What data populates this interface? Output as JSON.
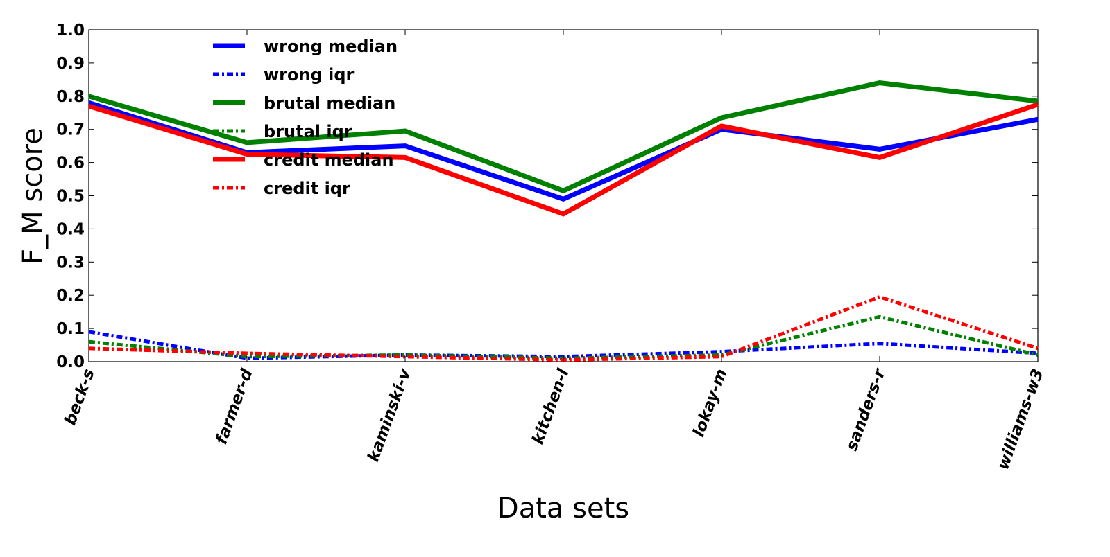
{
  "chart_data": {
    "type": "line",
    "title": "",
    "xlabel": "Data sets",
    "ylabel": "F_M score",
    "ylim": [
      0.0,
      1.0
    ],
    "yticks": [
      "0.0",
      "0.1",
      "0.2",
      "0.3",
      "0.4",
      "0.5",
      "0.6",
      "0.7",
      "0.8",
      "0.9",
      "1.0"
    ],
    "categories": [
      "beck-s",
      "farmer-d",
      "kaminski-v",
      "kitchen-l",
      "lokay-m",
      "sanders-r",
      "williams-w3"
    ],
    "grid": false,
    "legend_position": "top-left",
    "series": [
      {
        "name": "wrong median",
        "color": "#0000ff",
        "style": "solid",
        "values": [
          0.78,
          0.63,
          0.65,
          0.49,
          0.7,
          0.64,
          0.73
        ]
      },
      {
        "name": "wrong iqr",
        "color": "#0000ff",
        "style": "dashdot",
        "values": [
          0.09,
          0.01,
          0.02,
          0.015,
          0.03,
          0.055,
          0.025
        ]
      },
      {
        "name": "brutal median",
        "color": "#008000",
        "style": "solid",
        "values": [
          0.8,
          0.66,
          0.695,
          0.515,
          0.735,
          0.84,
          0.785
        ]
      },
      {
        "name": "brutal iqr",
        "color": "#008000",
        "style": "dashdot",
        "values": [
          0.06,
          0.015,
          0.02,
          0.01,
          0.02,
          0.135,
          0.02
        ]
      },
      {
        "name": "credit median",
        "color": "#ff0000",
        "style": "solid",
        "values": [
          0.77,
          0.625,
          0.615,
          0.445,
          0.71,
          0.615,
          0.775
        ]
      },
      {
        "name": "credit iqr",
        "color": "#ff0000",
        "style": "dashdot",
        "values": [
          0.04,
          0.025,
          0.015,
          0.005,
          0.015,
          0.195,
          0.04
        ]
      }
    ]
  }
}
